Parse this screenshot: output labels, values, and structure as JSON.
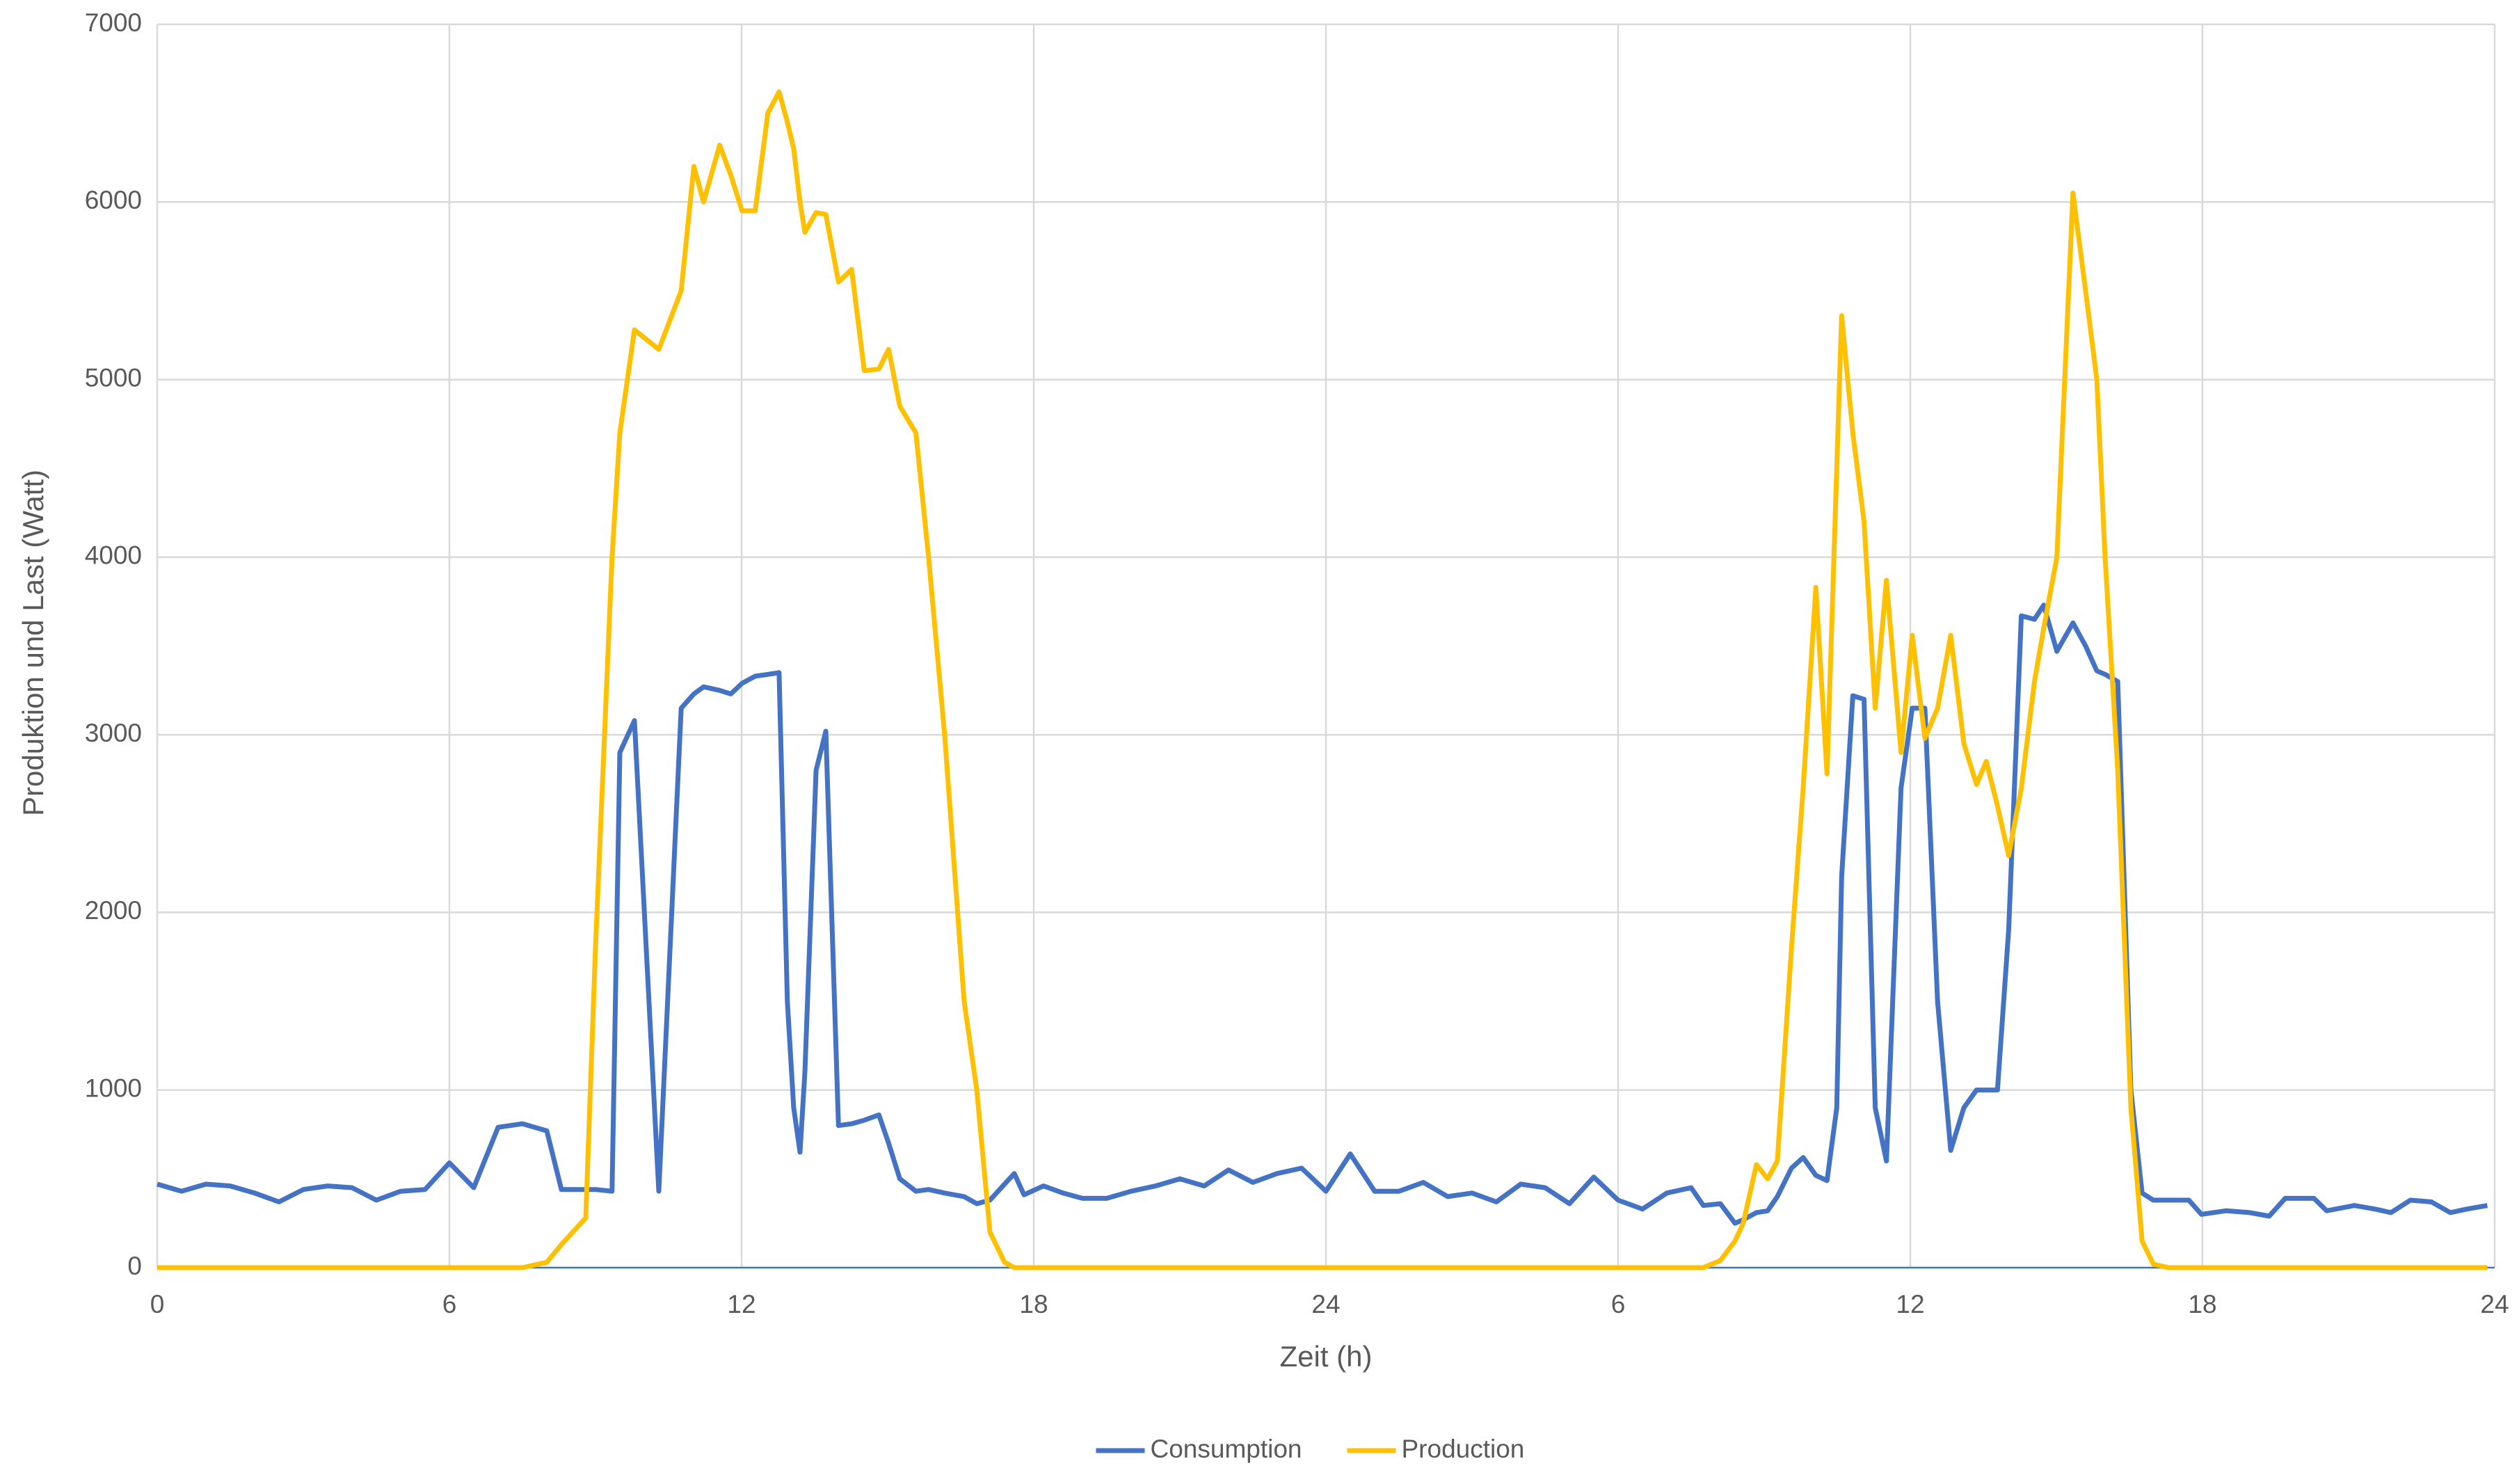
{
  "chart_data": {
    "type": "line",
    "x_label": "Zeit (h)",
    "y_label": "Produktion und Last (Watt)",
    "x": [
      0,
      0.5,
      1,
      1.5,
      2,
      2.5,
      3,
      3.5,
      4,
      4.5,
      5,
      5.5,
      6,
      6.5,
      7,
      7.5,
      8,
      8.3,
      8.8,
      9,
      9.34,
      9.5,
      9.8,
      10.3,
      10.76,
      11.02,
      11.22,
      11.55,
      11.78,
      12.01,
      12.28,
      12.54,
      12.77,
      12.94,
      13.07,
      13.2,
      13.3,
      13.53,
      13.73,
      13.99,
      14.26,
      14.52,
      14.82,
      15.02,
      15.25,
      15.58,
      15.84,
      16.17,
      16.57,
      16.83,
      17.1,
      17.4,
      17.6,
      17.8,
      18.2,
      18.6,
      19,
      19.5,
      20,
      20.5,
      21,
      21.5,
      22,
      22.5,
      23,
      23.5,
      24,
      24.5,
      25,
      25.5,
      26,
      26.5,
      27,
      27.5,
      28,
      28.5,
      29,
      29.5,
      30,
      30.5,
      31,
      31.5,
      31.75,
      32.1,
      32.4,
      32.57,
      32.84,
      33.07,
      33.27,
      33.56,
      33.8,
      34.06,
      34.29,
      34.49,
      34.59,
      34.82,
      35.05,
      35.28,
      35.51,
      35.81,
      36.04,
      36.3,
      36.56,
      36.83,
      37.1,
      37.36,
      37.56,
      37.79,
      38.02,
      38.28,
      38.55,
      38.74,
      39.01,
      39.34,
      39.6,
      39.83,
      40.0,
      40.26,
      40.53,
      40.76,
      40.99,
      41.3,
      41.72,
      41.98,
      42.48,
      42.97,
      43.37,
      43.7,
      44.29,
      44.55,
      45.12,
      45.54,
      45.87,
      46.27,
      46.7,
      47.09,
      47.43,
      47.85
    ],
    "series": [
      {
        "name": "Consumption",
        "color": "#4472c4",
        "values": [
          470,
          430,
          470,
          460,
          420,
          370,
          440,
          460,
          450,
          380,
          430,
          440,
          590,
          450,
          790,
          810,
          770,
          440,
          440,
          440,
          430,
          2900,
          3080,
          430,
          3150,
          3230,
          3270,
          3250,
          3230,
          3290,
          3330,
          3340,
          3350,
          1500,
          900,
          650,
          1100,
          2800,
          3020,
          800,
          810,
          830,
          860,
          700,
          500,
          430,
          440,
          420,
          400,
          360,
          380,
          470,
          530,
          410,
          460,
          420,
          390,
          390,
          430,
          460,
          500,
          460,
          550,
          480,
          530,
          560,
          430,
          640,
          430,
          430,
          480,
          400,
          420,
          370,
          470,
          450,
          360,
          510,
          380,
          330,
          420,
          450,
          350,
          360,
          250,
          270,
          310,
          320,
          400,
          560,
          620,
          520,
          490,
          900,
          2200,
          3220,
          3200,
          900,
          600,
          2700,
          3150,
          3150,
          1500,
          660,
          900,
          1000,
          1000,
          1000,
          1900,
          3670,
          3650,
          3730,
          3470,
          3630,
          3500,
          3360,
          3340,
          3300,
          1000,
          420,
          380,
          380,
          380,
          300,
          320,
          310,
          290,
          390,
          390,
          320,
          350,
          330,
          310,
          380,
          370,
          310,
          330,
          350
        ]
      },
      {
        "name": "Production",
        "color": "#ffc000",
        "values": [
          0,
          0,
          0,
          0,
          0,
          0,
          0,
          0,
          0,
          0,
          0,
          0,
          0,
          0,
          0,
          0,
          30,
          130,
          280,
          1800,
          4000,
          4700,
          5280,
          5170,
          5500,
          6200,
          6000,
          6320,
          6150,
          5950,
          5950,
          6500,
          6620,
          6450,
          6300,
          6000,
          5830,
          5940,
          5930,
          5550,
          5620,
          5050,
          5060,
          5170,
          4850,
          4700,
          4000,
          3000,
          1500,
          1000,
          200,
          30,
          0,
          0,
          0,
          0,
          0,
          0,
          0,
          0,
          0,
          0,
          0,
          0,
          0,
          0,
          0,
          0,
          0,
          0,
          0,
          0,
          0,
          0,
          0,
          0,
          0,
          0,
          0,
          0,
          0,
          0,
          0,
          40,
          150,
          250,
          580,
          500,
          600,
          1800,
          2700,
          3830,
          2780,
          4500,
          5360,
          4700,
          4200,
          3150,
          3870,
          2900,
          3560,
          2980,
          3150,
          3560,
          2950,
          2720,
          2850,
          2600,
          2320,
          2700,
          3300,
          3600,
          4000,
          6050,
          5500,
          5000,
          4000,
          2800,
          900,
          150,
          20,
          0,
          0,
          0,
          0,
          0,
          0,
          0,
          0,
          0,
          0,
          0,
          0,
          0,
          0,
          0,
          0,
          0
        ]
      }
    ],
    "xlim": [
      0,
      48
    ],
    "xticks": [
      0,
      6,
      12,
      18,
      24,
      {
        "value": 30,
        "label": "6"
      },
      {
        "value": 36,
        "label": "12"
      },
      {
        "value": 42,
        "label": "18"
      },
      {
        "value": 48,
        "label": "24"
      }
    ],
    "ylim": [
      0,
      7000
    ],
    "yticks": [
      0,
      1000,
      2000,
      3000,
      4000,
      5000,
      6000,
      7000
    ],
    "grid": true,
    "legend": "bottom"
  }
}
